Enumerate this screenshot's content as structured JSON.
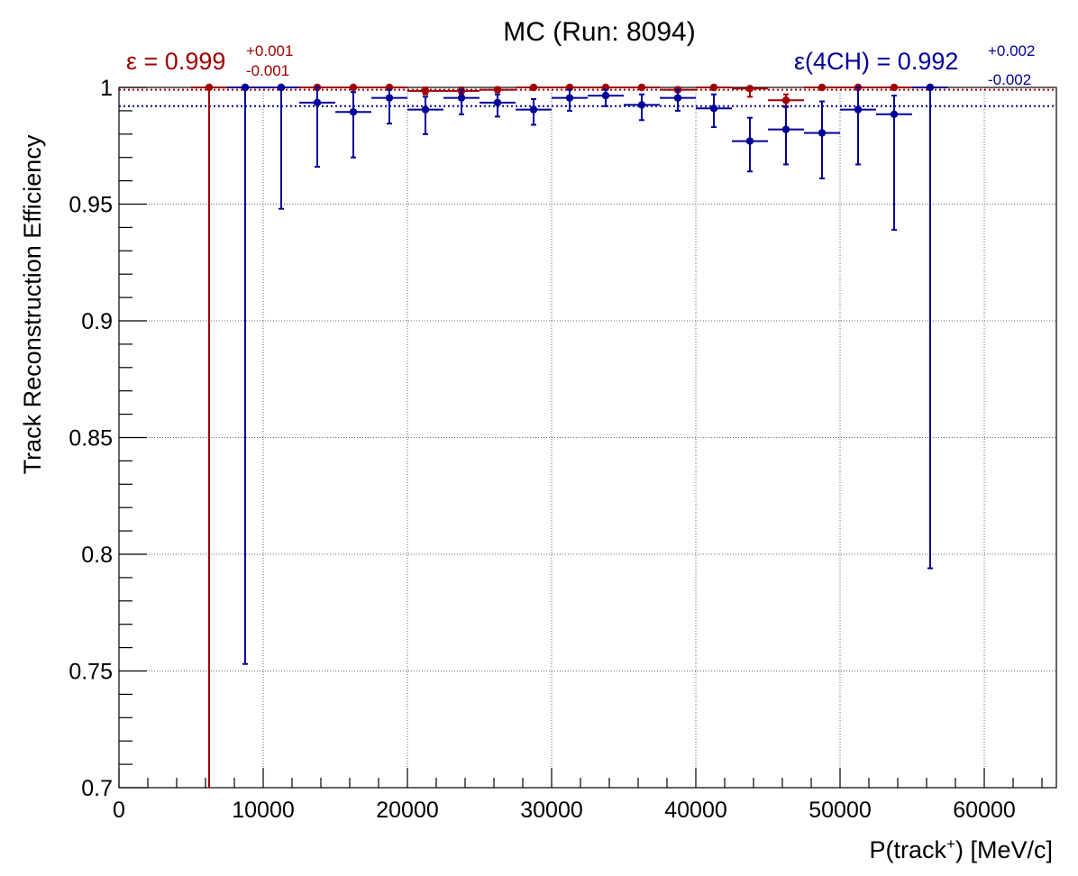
{
  "chart_data": {
    "type": "scatter",
    "title": "MC (Run: 8094)",
    "ylabel": "Track Reconstruction Efficiency",
    "xlabel_pre": "P(track",
    "xlabel_sup": "+",
    "xlabel_post": ") [MeV/c]",
    "xlim": [
      0,
      65000
    ],
    "ylim": [
      0.7,
      1.0
    ],
    "grid": true,
    "x_ticks": [
      0,
      10000,
      20000,
      30000,
      40000,
      50000,
      60000
    ],
    "x_tick_labels": [
      "0",
      "10000",
      "20000",
      "30000",
      "40000",
      "50000",
      "60000"
    ],
    "y_ticks": [
      0.7,
      0.75,
      0.8,
      0.85,
      0.9,
      0.95,
      1.0
    ],
    "y_tick_labels": [
      "0.7",
      "0.75",
      "0.8",
      "0.85",
      "0.9",
      "0.95",
      "1"
    ],
    "annotations": {
      "red": {
        "text": "ε = 0.999",
        "plus": "+0.001",
        "minus": "-0.001",
        "color": "#a00000"
      },
      "blue": {
        "text": "ε(4CH) = 0.992",
        "plus": "+0.002",
        "minus": "-0.002",
        "color": "#000099"
      }
    },
    "reference_lines": [
      {
        "y": 0.999,
        "color": "#a00000",
        "style": "dotted"
      },
      {
        "y": 0.992,
        "color": "#000099",
        "style": "dotted"
      }
    ],
    "series": [
      {
        "color": "#a00000",
        "points": [
          {
            "x": 6250,
            "y": 1.0,
            "xerr": 1250,
            "ylo": 0.7,
            "yhi": 1.0
          },
          {
            "x": 8750,
            "y": 1.0,
            "xerr": 1250,
            "ylo": 1.0,
            "yhi": 1.0
          },
          {
            "x": 11250,
            "y": 1.0,
            "xerr": 1250,
            "ylo": 1.0,
            "yhi": 1.0
          },
          {
            "x": 13750,
            "y": 1.0,
            "xerr": 1250,
            "ylo": 1.0,
            "yhi": 1.0
          },
          {
            "x": 16250,
            "y": 1.0,
            "xerr": 1250,
            "ylo": 1.0,
            "yhi": 1.0
          },
          {
            "x": 18750,
            "y": 1.0,
            "xerr": 1250,
            "ylo": 1.0,
            "yhi": 1.0
          },
          {
            "x": 21250,
            "y": 0.9985,
            "xerr": 1250,
            "ylo": 0.997,
            "yhi": 1.0
          },
          {
            "x": 23750,
            "y": 0.9985,
            "xerr": 1250,
            "ylo": 0.997,
            "yhi": 1.0
          },
          {
            "x": 26250,
            "y": 0.999,
            "xerr": 1250,
            "ylo": 0.998,
            "yhi": 1.0
          },
          {
            "x": 28750,
            "y": 1.0,
            "xerr": 1250,
            "ylo": 0.999,
            "yhi": 1.0
          },
          {
            "x": 31250,
            "y": 1.0,
            "xerr": 1250,
            "ylo": 1.0,
            "yhi": 1.0
          },
          {
            "x": 33750,
            "y": 1.0,
            "xerr": 1250,
            "ylo": 1.0,
            "yhi": 1.0
          },
          {
            "x": 36250,
            "y": 1.0,
            "xerr": 1250,
            "ylo": 1.0,
            "yhi": 1.0
          },
          {
            "x": 38750,
            "y": 0.999,
            "xerr": 1250,
            "ylo": 0.998,
            "yhi": 1.0
          },
          {
            "x": 41250,
            "y": 1.0,
            "xerr": 1250,
            "ylo": 0.999,
            "yhi": 1.0
          },
          {
            "x": 43750,
            "y": 0.9995,
            "xerr": 1250,
            "ylo": 0.996,
            "yhi": 1.0
          },
          {
            "x": 46250,
            "y": 0.9945,
            "xerr": 1250,
            "ylo": 0.9915,
            "yhi": 0.997
          },
          {
            "x": 48750,
            "y": 1.0,
            "xerr": 1250,
            "ylo": 1.0,
            "yhi": 1.0
          },
          {
            "x": 51250,
            "y": 1.0,
            "xerr": 1250,
            "ylo": 1.0,
            "yhi": 1.0
          },
          {
            "x": 53750,
            "y": 1.0,
            "xerr": 1250,
            "ylo": 1.0,
            "yhi": 1.0
          },
          {
            "x": 56250,
            "y": 1.0,
            "xerr": 1250,
            "ylo": 1.0,
            "yhi": 1.0
          }
        ]
      },
      {
        "color": "#000099",
        "points": [
          {
            "x": 8750,
            "y": 1.0,
            "xerr": 1250,
            "ylo": 0.753,
            "yhi": 1.0
          },
          {
            "x": 11250,
            "y": 1.0,
            "xerr": 1250,
            "ylo": 0.948,
            "yhi": 1.0
          },
          {
            "x": 13750,
            "y": 0.9935,
            "xerr": 1250,
            "ylo": 0.966,
            "yhi": 1.0
          },
          {
            "x": 16250,
            "y": 0.9895,
            "xerr": 1250,
            "ylo": 0.97,
            "yhi": 0.998
          },
          {
            "x": 18750,
            "y": 0.9955,
            "xerr": 1250,
            "ylo": 0.9845,
            "yhi": 0.999
          },
          {
            "x": 21250,
            "y": 0.9905,
            "xerr": 1250,
            "ylo": 0.98,
            "yhi": 0.996
          },
          {
            "x": 23750,
            "y": 0.9955,
            "xerr": 1250,
            "ylo": 0.9885,
            "yhi": 0.999
          },
          {
            "x": 26250,
            "y": 0.9935,
            "xerr": 1250,
            "ylo": 0.9875,
            "yhi": 0.997
          },
          {
            "x": 28750,
            "y": 0.9905,
            "xerr": 1250,
            "ylo": 0.984,
            "yhi": 0.995
          },
          {
            "x": 31250,
            "y": 0.9955,
            "xerr": 1250,
            "ylo": 0.99,
            "yhi": 0.999
          },
          {
            "x": 33750,
            "y": 0.9965,
            "xerr": 1250,
            "ylo": 0.992,
            "yhi": 0.999
          },
          {
            "x": 36250,
            "y": 0.9925,
            "xerr": 1250,
            "ylo": 0.986,
            "yhi": 0.997
          },
          {
            "x": 38750,
            "y": 0.9955,
            "xerr": 1250,
            "ylo": 0.99,
            "yhi": 0.999
          },
          {
            "x": 41250,
            "y": 0.991,
            "xerr": 1250,
            "ylo": 0.983,
            "yhi": 0.997
          },
          {
            "x": 43750,
            "y": 0.977,
            "xerr": 1250,
            "ylo": 0.964,
            "yhi": 0.987
          },
          {
            "x": 46250,
            "y": 0.982,
            "xerr": 1250,
            "ylo": 0.967,
            "yhi": 0.992
          },
          {
            "x": 48750,
            "y": 0.9805,
            "xerr": 1250,
            "ylo": 0.961,
            "yhi": 0.994
          },
          {
            "x": 51250,
            "y": 0.9905,
            "xerr": 1250,
            "ylo": 0.967,
            "yhi": 1.0
          },
          {
            "x": 53750,
            "y": 0.9885,
            "xerr": 1250,
            "ylo": 0.939,
            "yhi": 0.9965
          },
          {
            "x": 56250,
            "y": 1.0,
            "xerr": 1250,
            "ylo": 0.794,
            "yhi": 1.0
          }
        ]
      }
    ]
  }
}
